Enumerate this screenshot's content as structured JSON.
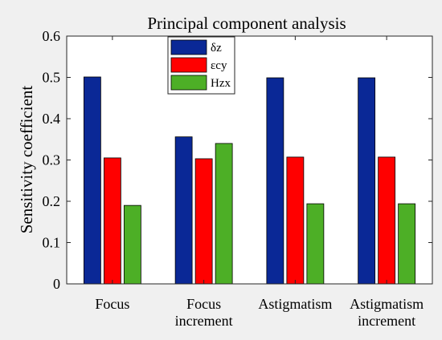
{
  "chart_data": {
    "type": "bar",
    "title": "Principal component analysis",
    "xlabel": "",
    "ylabel": "Sensitivity coefficient",
    "ylim": [
      0,
      0.6
    ],
    "yticks": [
      "0",
      "0.1",
      "0.2",
      "0.3",
      "0.4",
      "0.5",
      "0.6"
    ],
    "categories": [
      [
        "Focus"
      ],
      [
        "Focus",
        "increment"
      ],
      [
        "Astigmatism"
      ],
      [
        "Astigmatism",
        "increment"
      ]
    ],
    "series": [
      {
        "name": "δz",
        "color": "#0a2896",
        "values": [
          0.501,
          0.356,
          0.499,
          0.499
        ]
      },
      {
        "name": "εcy",
        "color": "#ff0000",
        "values": [
          0.305,
          0.303,
          0.307,
          0.307
        ]
      },
      {
        "name": "Hzx",
        "color": "#4daf26",
        "values": [
          0.19,
          0.34,
          0.194,
          0.194
        ]
      }
    ],
    "legend_position": "top-left",
    "grid": false
  }
}
